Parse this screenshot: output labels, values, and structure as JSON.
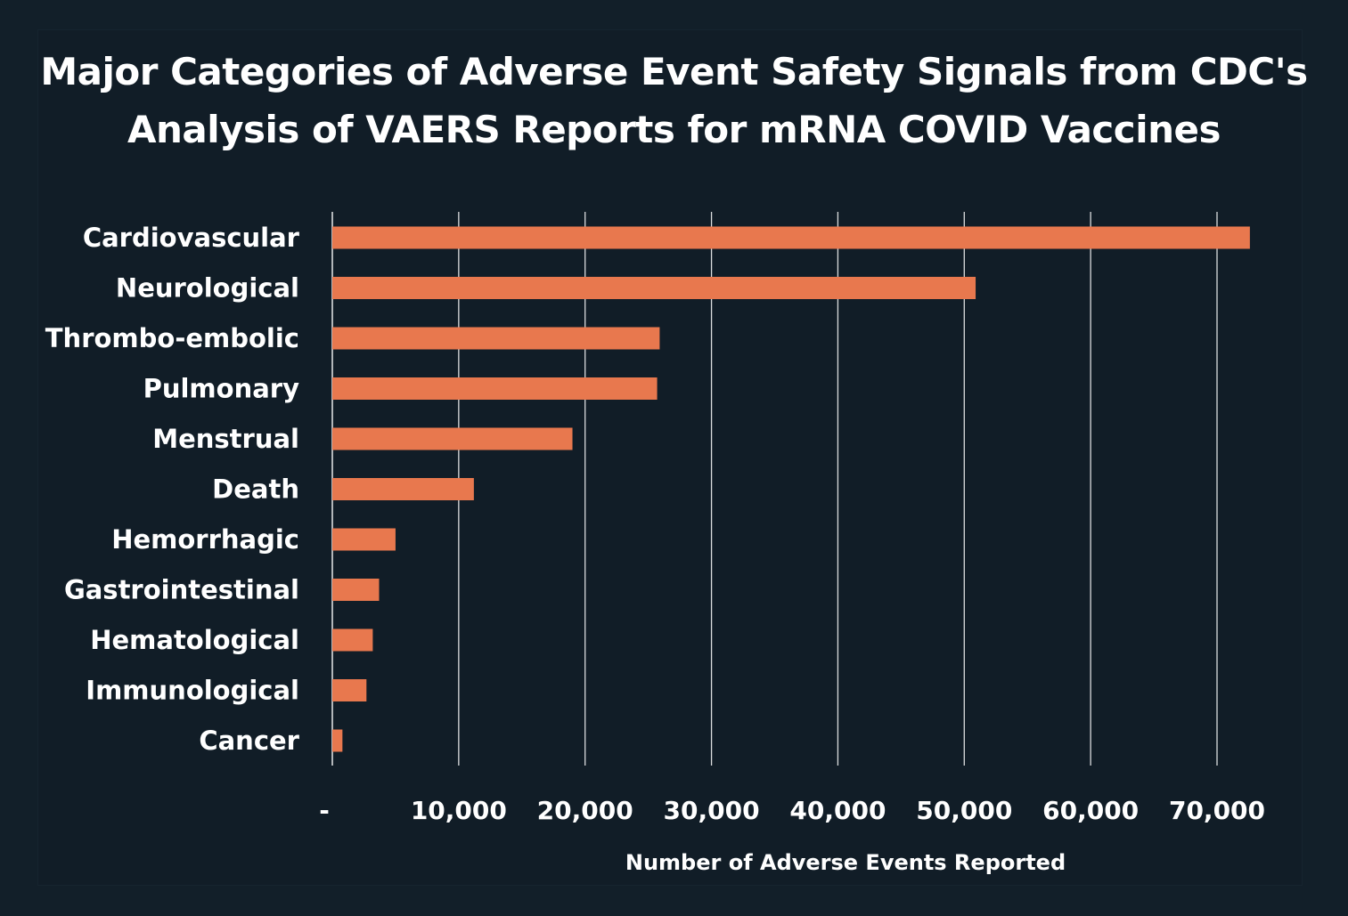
{
  "chart_data": {
    "type": "bar",
    "orientation": "horizontal",
    "title_lines": [
      "Major Categories of Adverse Event Safety Signals from CDC's",
      "Analysis of VAERS Reports for mRNA COVID Vaccines"
    ],
    "categories": [
      "Cardiovascular",
      "Neurological",
      "Thrombo-embolic",
      "Pulmonary",
      "Menstrual",
      "Death",
      "Hemorrhagic",
      "Gastrointestinal",
      "Hematological",
      "Immunological",
      "Cancer"
    ],
    "values": [
      72600,
      50900,
      25900,
      25700,
      19000,
      11200,
      5000,
      3700,
      3200,
      2700,
      800
    ],
    "xlim": [
      0,
      70000
    ],
    "x_ticks": [
      0,
      10000,
      20000,
      30000,
      40000,
      50000,
      60000,
      70000
    ],
    "x_tick_labels": [
      "-",
      "10,000",
      "20,000",
      "30,000",
      "40,000",
      "50,000",
      "60,000",
      "70,000"
    ],
    "xlabel": "Number of Adverse Events Reported",
    "ylabel": "",
    "grid": "vertical",
    "legend": "none",
    "bar_color": "#e8784e"
  },
  "colors": {
    "background": "#121f29",
    "text": "#ffffff",
    "gridline": "#ffffff"
  }
}
